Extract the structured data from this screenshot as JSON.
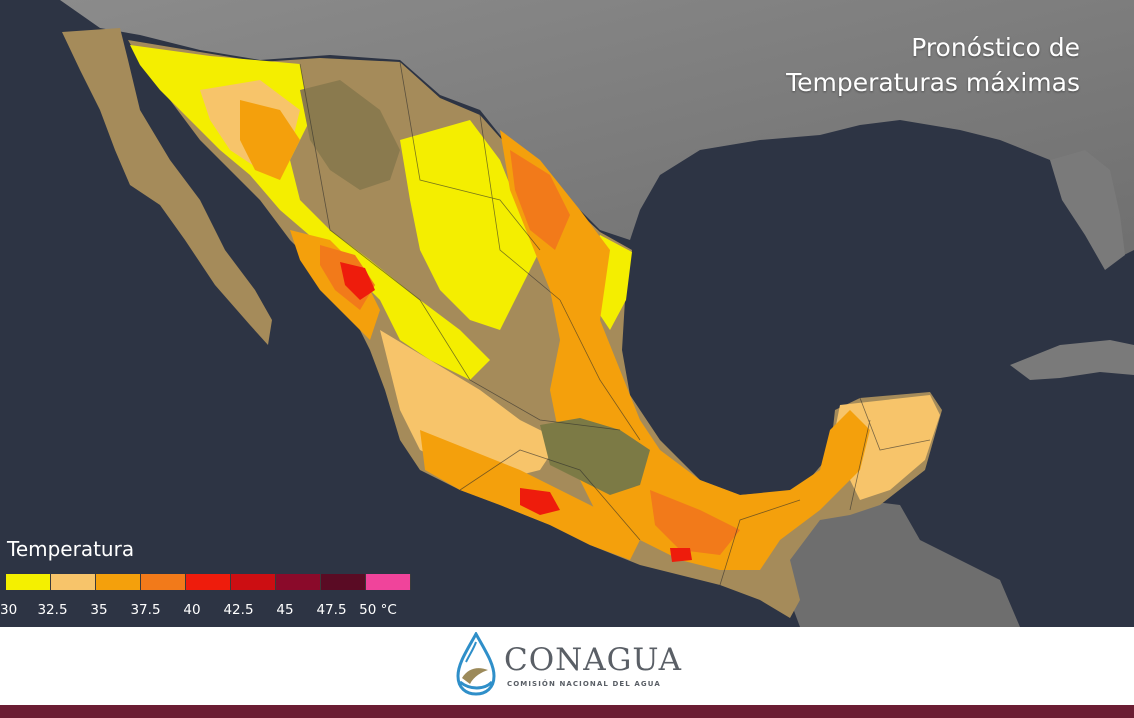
{
  "title": {
    "line1": "Pronóstico de",
    "line2": "Temperaturas máximas"
  },
  "legend": {
    "title": "Temperatura",
    "colors": [
      "#f4f000",
      "#f7c46a",
      "#f4a00c",
      "#f27a1a",
      "#ee1c0c",
      "#cc0e12",
      "#8a0a2a",
      "#5a0b24",
      "#f0449b"
    ],
    "ticks": [
      "30",
      "32.5",
      "35",
      "37.5",
      "40",
      "42.5",
      "45",
      "47.5",
      "50 °C"
    ]
  },
  "logo": {
    "name": "CONAGUA",
    "subtitle": "COMISIÓN NACIONAL DEL AGUA"
  },
  "colors": {
    "ocean": "#2b3240",
    "land": "#8e8e8e",
    "desert": "#a08a5c",
    "banner": "#6b1d33"
  }
}
